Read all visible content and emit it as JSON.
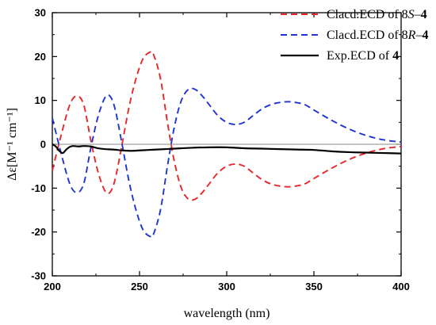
{
  "chart_data": {
    "type": "line",
    "xlabel": "wavelength (nm)",
    "ylabel": "Δε[M⁻¹ cm⁻¹]",
    "xlim": [
      200,
      400
    ],
    "ylim": [
      -30,
      30
    ],
    "x_ticks": [
      200,
      250,
      300,
      350,
      400
    ],
    "y_ticks": [
      -30,
      -20,
      -10,
      0,
      10,
      20,
      30
    ],
    "grid": false,
    "legend_position": "top-right",
    "zero_line": true,
    "series": [
      {
        "name": "Clacd.ECD of 8S–4",
        "legend_parts": [
          {
            "t": "Clacd.ECD of 8"
          },
          {
            "t": "S",
            "style": "italic"
          },
          {
            "t": "–"
          },
          {
            "t": "4",
            "style": "bold"
          }
        ],
        "color": "#e8262a",
        "dash": "dashed",
        "x": [
          200,
          205,
          210,
          214,
          218,
          222,
          226,
          230,
          233,
          236,
          240,
          244,
          248,
          252,
          256,
          258,
          262,
          266,
          270,
          274,
          278,
          282,
          286,
          290,
          295,
          300,
          305,
          310,
          315,
          320,
          325,
          330,
          335,
          340,
          345,
          350,
          360,
          370,
          380,
          390,
          400
        ],
        "y": [
          -6,
          2,
          9,
          11,
          9,
          1,
          -6,
          -10.5,
          -11,
          -8,
          0,
          8.5,
          15,
          19.5,
          21,
          20.5,
          15,
          5,
          -4,
          -10,
          -12.5,
          -12.5,
          -11,
          -9,
          -6.5,
          -5,
          -4.5,
          -5,
          -6.5,
          -8,
          -9,
          -9.5,
          -9.7,
          -9.5,
          -9,
          -7.8,
          -5.5,
          -3.5,
          -2,
          -1,
          -0.5
        ]
      },
      {
        "name": "Clacd.ECD of 8R–4",
        "legend_parts": [
          {
            "t": "Clacd.ECD of 8"
          },
          {
            "t": "R",
            "style": "italic"
          },
          {
            "t": "–"
          },
          {
            "t": "4",
            "style": "bold"
          }
        ],
        "color": "#1f33d6",
        "dash": "dashed",
        "x": [
          200,
          205,
          210,
          214,
          218,
          222,
          226,
          230,
          233,
          236,
          240,
          244,
          248,
          252,
          256,
          258,
          262,
          266,
          270,
          274,
          278,
          282,
          286,
          290,
          295,
          300,
          305,
          310,
          315,
          320,
          325,
          330,
          335,
          340,
          345,
          350,
          360,
          370,
          380,
          390,
          400
        ],
        "y": [
          6,
          -2,
          -9,
          -11,
          -9,
          -1,
          6,
          10.5,
          11,
          8,
          0,
          -8.5,
          -15,
          -19.5,
          -21,
          -20.5,
          -15,
          -5,
          4,
          10,
          12.5,
          12.5,
          11,
          9,
          6.5,
          5,
          4.5,
          5,
          6.5,
          8,
          9,
          9.5,
          9.7,
          9.5,
          9,
          7.8,
          5.5,
          3.5,
          2,
          1,
          0.5
        ]
      },
      {
        "name": "Exp.ECD of 4",
        "legend_parts": [
          {
            "t": "Exp.ECD of "
          },
          {
            "t": "4",
            "style": "bold"
          }
        ],
        "color": "#000000",
        "dash": "solid",
        "x": [
          200,
          202,
          204,
          206,
          208,
          210,
          212,
          215,
          218,
          222,
          226,
          230,
          235,
          240,
          245,
          250,
          255,
          260,
          270,
          280,
          290,
          300,
          310,
          320,
          330,
          340,
          350,
          360,
          370,
          380,
          390,
          400
        ],
        "y": [
          0,
          -0.5,
          -1.5,
          -2,
          -1.2,
          -0.6,
          -0.4,
          -0.5,
          -0.4,
          -0.5,
          -0.9,
          -1.1,
          -1.2,
          -1.4,
          -1.5,
          -1.4,
          -1.3,
          -1.2,
          -1.0,
          -0.8,
          -0.7,
          -0.7,
          -0.9,
          -1.0,
          -1.1,
          -1.2,
          -1.3,
          -1.6,
          -1.8,
          -1.9,
          -2.0,
          -2.1
        ]
      }
    ]
  }
}
